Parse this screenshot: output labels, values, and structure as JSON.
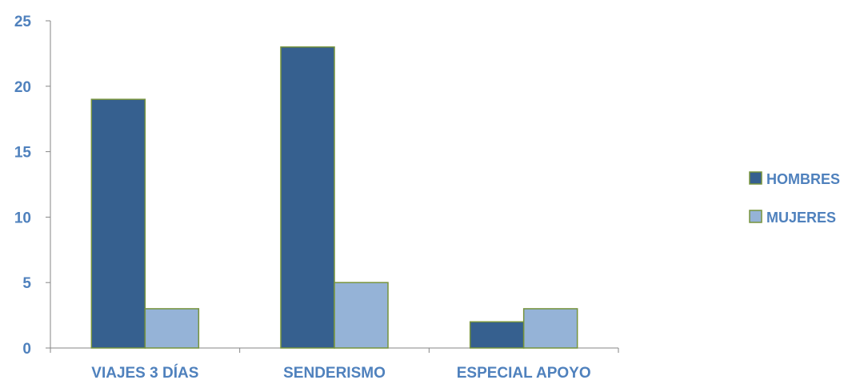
{
  "chart_data": {
    "type": "bar",
    "categories": [
      "VIAJES 3 DÍAS",
      "SENDERISMO",
      "ESPECIAL APOYO"
    ],
    "series": [
      {
        "name": "HOMBRES",
        "values": [
          19,
          23,
          2
        ],
        "color": "#36608f"
      },
      {
        "name": "MUJERES",
        "values": [
          3,
          5,
          3
        ],
        "color": "#95b3d7"
      }
    ],
    "bar_outline_color": "#77933c",
    "label_color": "#4f81bd",
    "ylim": [
      0,
      25
    ],
    "y_ticks": [
      "0",
      "5",
      "10",
      "15",
      "20",
      "25"
    ],
    "grid": false,
    "legend_position": "right"
  }
}
